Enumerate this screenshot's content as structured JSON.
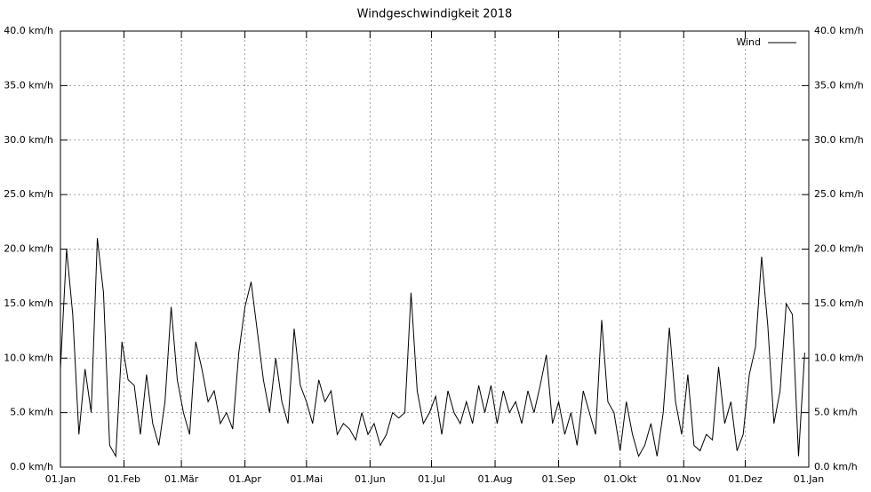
{
  "chart_data": {
    "type": "line",
    "title": "Windgeschwindigkeit 2018",
    "x": [
      0,
      3,
      6,
      9,
      12,
      15,
      18,
      21,
      24,
      27,
      30,
      33,
      36,
      39,
      42,
      45,
      48,
      51,
      54,
      57,
      60,
      63,
      66,
      69,
      72,
      75,
      78,
      81,
      84,
      87,
      90,
      93,
      96,
      99,
      102,
      105,
      108,
      111,
      114,
      117,
      120,
      123,
      126,
      129,
      132,
      135,
      138,
      141,
      144,
      147,
      150,
      153,
      156,
      159,
      162,
      165,
      168,
      171,
      174,
      177,
      180,
      183,
      186,
      189,
      192,
      195,
      198,
      201,
      204,
      207,
      210,
      213,
      216,
      219,
      222,
      225,
      228,
      231,
      234,
      237,
      240,
      243,
      246,
      249,
      252,
      255,
      258,
      261,
      264,
      267,
      270,
      273,
      276,
      279,
      282,
      285,
      288,
      291,
      294,
      297,
      300,
      303,
      306,
      309,
      312,
      315,
      318,
      321,
      324,
      327,
      330,
      333,
      336,
      339,
      342,
      345,
      348,
      351,
      354,
      357,
      360,
      363
    ],
    "series": [
      {
        "name": "Wind",
        "color": "#000000",
        "values": [
          9,
          20,
          14,
          3,
          9,
          5,
          21,
          16,
          2,
          1,
          11.5,
          8,
          7.5,
          3,
          8.5,
          4,
          2,
          6,
          14.7,
          8,
          5,
          3,
          11.5,
          9,
          6,
          7,
          4,
          5,
          3.5,
          10.5,
          14.7,
          17,
          12.5,
          8,
          5,
          10,
          6,
          4,
          12.7,
          7.5,
          6,
          4,
          8,
          6,
          7,
          3,
          4,
          3.5,
          2.5,
          5,
          3,
          4,
          2,
          3,
          5,
          4.5,
          5,
          16,
          7,
          4,
          5,
          6.5,
          3,
          7,
          5,
          4,
          6,
          4,
          7.5,
          5,
          7.5,
          4,
          7,
          5,
          6,
          4,
          7,
          5,
          7.5,
          10.3,
          4,
          6,
          3,
          5,
          2,
          7,
          5,
          3,
          13.5,
          6,
          5,
          1.5,
          6,
          3,
          1,
          2,
          4,
          1,
          5,
          12.8,
          6,
          3,
          8.5,
          2,
          1.5,
          3,
          2.5,
          9.2,
          4,
          6,
          1.5,
          3,
          8.5,
          11,
          19.3,
          13,
          4,
          7,
          15,
          14,
          1,
          10.5
        ]
      }
    ],
    "xlim": [
      0,
      365
    ],
    "xticks": [
      {
        "value": 0,
        "label": "01.Jan"
      },
      {
        "value": 31,
        "label": "01.Feb"
      },
      {
        "value": 59,
        "label": "01.Mär"
      },
      {
        "value": 90,
        "label": "01.Apr"
      },
      {
        "value": 120,
        "label": "01.Mai"
      },
      {
        "value": 151,
        "label": "01.Jun"
      },
      {
        "value": 181,
        "label": "01.Jul"
      },
      {
        "value": 212,
        "label": "01.Aug"
      },
      {
        "value": 243,
        "label": "01.Sep"
      },
      {
        "value": 273,
        "label": "01.Okt"
      },
      {
        "value": 304,
        "label": "01.Nov"
      },
      {
        "value": 334,
        "label": "01.Dez"
      },
      {
        "value": 365,
        "label": "01.Jan"
      }
    ],
    "ylim": [
      0,
      40
    ],
    "yticks": [
      {
        "value": 0,
        "label": "0.0 km/h"
      },
      {
        "value": 5,
        "label": "5.0 km/h"
      },
      {
        "value": 10,
        "label": "10.0 km/h"
      },
      {
        "value": 15,
        "label": "15.0 km/h"
      },
      {
        "value": 20,
        "label": "20.0 km/h"
      },
      {
        "value": 25,
        "label": "25.0 km/h"
      },
      {
        "value": 30,
        "label": "30.0 km/h"
      },
      {
        "value": 35,
        "label": "35.0 km/h"
      },
      {
        "value": 40,
        "label": "40.0 km/h"
      }
    ],
    "grid": true,
    "legend": "top-right"
  }
}
